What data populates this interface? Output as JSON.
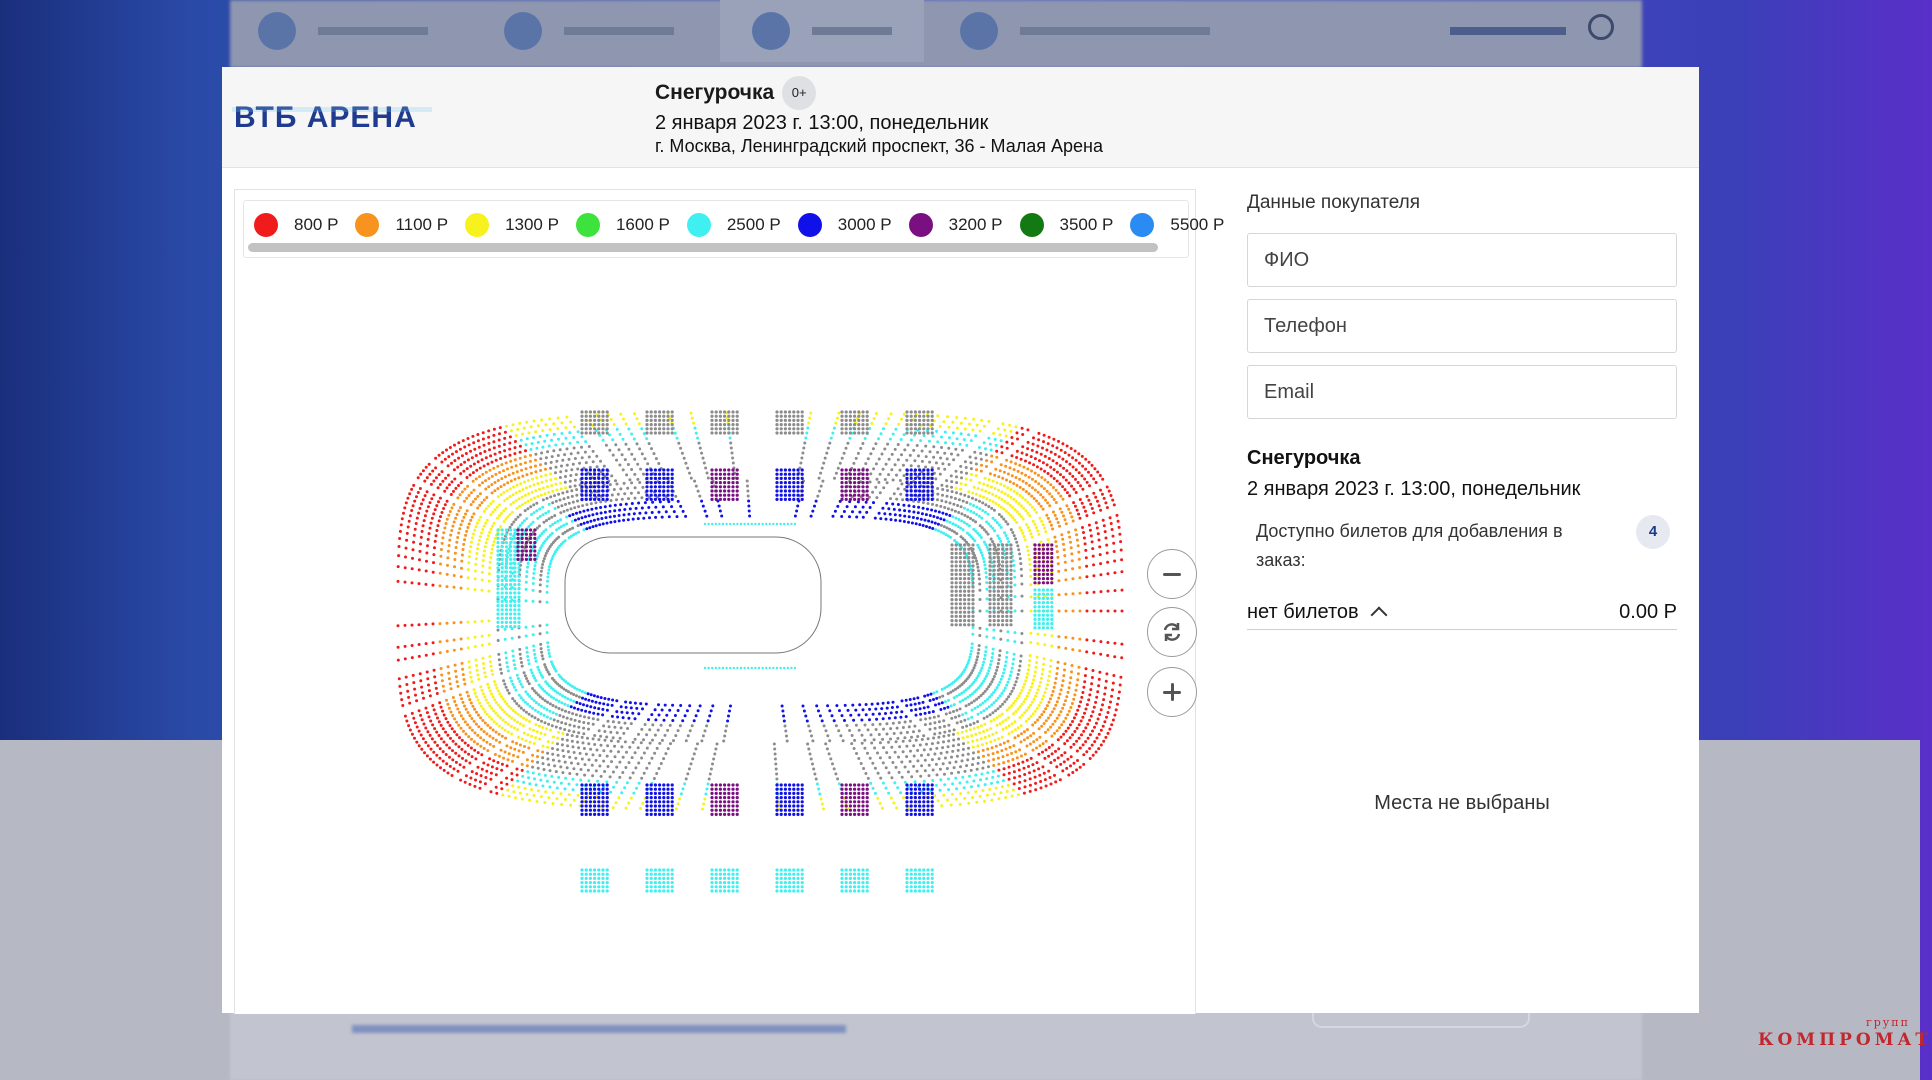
{
  "header": {
    "logo_text": "ВТБ АРЕНА",
    "title": "Снегурочка",
    "age_rating": "0+",
    "datetime": "2 января 2023 г. 13:00, понедельник",
    "venue": "г. Москва, Ленинградский проспект, 36 - Малая Арена"
  },
  "legend": [
    {
      "label": "800 Р",
      "color": "#f01b1b"
    },
    {
      "label": "1100 Р",
      "color": "#f7931e"
    },
    {
      "label": "1300 Р",
      "color": "#f7f21e"
    },
    {
      "label": "1600 Р",
      "color": "#3de23d"
    },
    {
      "label": "2500 Р",
      "color": "#40f0f0"
    },
    {
      "label": "3000 Р",
      "color": "#1010e8"
    },
    {
      "label": "3200 Р",
      "color": "#7a0f82"
    },
    {
      "label": "3500 Р",
      "color": "#137a13"
    },
    {
      "label": "5500 Р",
      "color": "#2a8cf2"
    }
  ],
  "zoom": {
    "out_icon": "minus-icon",
    "reset_icon": "refresh-icon",
    "in_icon": "plus-icon"
  },
  "buyer": {
    "heading": "Данные покупателя",
    "name_placeholder": "ФИО",
    "phone_placeholder": "Телефон",
    "email_placeholder": "Email"
  },
  "order": {
    "title": "Снегурочка",
    "datetime": "2 января 2023 г. 13:00, понедельник",
    "available_label": "Доступно билетов для добавления в заказ:",
    "available_count": "4",
    "tickets_label": "нет билетов",
    "tickets_price": "0.00 Р",
    "empty_message": "Места не выбраны"
  },
  "watermark": {
    "text": "КОМПРОМАТ",
    "small": "групп"
  }
}
